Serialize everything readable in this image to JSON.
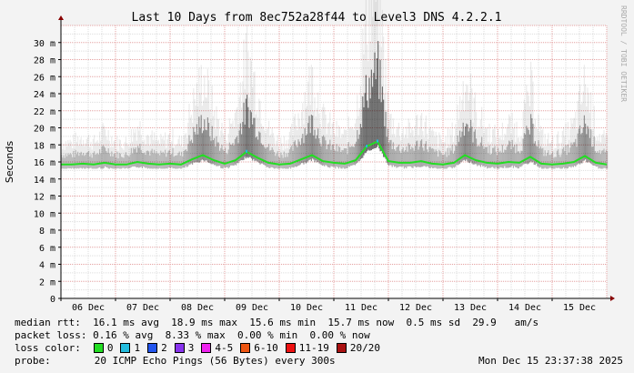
{
  "chart_data": {
    "type": "area",
    "title": "Last 10 Days from 8ec752a28f44 to Level3 DNS 4.2.2.1",
    "ylabel": "Seconds",
    "watermark": "RRDTOOL / TOBI OETIKER",
    "categories": [
      "06 Dec",
      "07 Dec",
      "08 Dec",
      "09 Dec",
      "10 Dec",
      "11 Dec",
      "12 Dec",
      "13 Dec",
      "14 Dec",
      "15 Dec"
    ],
    "y_ticks": [
      "0",
      "2 m",
      "4 m",
      "6 m",
      "8 m",
      "10 m",
      "12 m",
      "14 m",
      "16 m",
      "18 m",
      "20 m",
      "22 m",
      "24 m",
      "26 m",
      "28 m",
      "30 m"
    ],
    "ylim": [
      0,
      32
    ],
    "grid": true,
    "series": [
      {
        "name": "median rtt",
        "color": "#22dd22",
        "x": [
          0.0,
          0.2,
          0.4,
          0.6,
          0.8,
          1.0,
          1.2,
          1.4,
          1.6,
          1.8,
          2.0,
          2.2,
          2.4,
          2.6,
          2.8,
          3.0,
          3.2,
          3.4,
          3.6,
          3.8,
          4.0,
          4.2,
          4.4,
          4.6,
          4.8,
          5.0,
          5.2,
          5.4,
          5.6,
          5.8,
          6.0,
          6.2,
          6.4,
          6.6,
          6.8,
          7.0,
          7.2,
          7.4,
          7.6,
          7.8,
          8.0,
          8.2,
          8.4,
          8.6,
          8.8,
          9.0,
          9.2,
          9.4,
          9.6,
          9.8,
          10.0
        ],
        "values": [
          15.7,
          15.7,
          15.8,
          15.7,
          15.9,
          15.7,
          15.7,
          16.0,
          15.8,
          15.7,
          15.8,
          15.7,
          16.3,
          16.8,
          16.2,
          15.8,
          16.2,
          17.2,
          16.5,
          15.9,
          15.7,
          15.8,
          16.3,
          16.8,
          16.1,
          15.9,
          15.8,
          16.2,
          17.8,
          18.4,
          16.1,
          15.9,
          15.9,
          16.1,
          15.8,
          15.7,
          15.9,
          16.8,
          16.2,
          15.9,
          15.8,
          16.0,
          15.9,
          16.6,
          15.8,
          15.7,
          15.8,
          16.0,
          16.7,
          15.9,
          15.7
        ]
      }
    ]
  },
  "stats": {
    "median_rtt": "median rtt:  16.1 ms avg  18.9 ms max  15.6 ms min  15.7 ms now  0.5 ms sd  29.9   am/s",
    "packet_loss": "packet loss: 0.16 % avg  8.33 % max  0.00 % min  0.00 % now",
    "loss_color_label": "loss color:",
    "loss_colors": [
      {
        "label": "0",
        "color": "#22dd22"
      },
      {
        "label": "1",
        "color": "#22bbdd"
      },
      {
        "label": "2",
        "color": "#2255ee"
      },
      {
        "label": "3",
        "color": "#8833ee"
      },
      {
        "label": "4-5",
        "color": "#ee22ee"
      },
      {
        "label": "6-10",
        "color": "#ee5511"
      },
      {
        "label": "11-19",
        "color": "#ee1111"
      },
      {
        "label": "20/20",
        "color": "#aa1111"
      }
    ],
    "probe_label": "probe:",
    "probe": "20 ICMP Echo Pings (56 Bytes) every 300s",
    "timestamp": "Mon Dec 15 23:37:38 2025"
  },
  "colors": {
    "background": "#f3f3f3",
    "plot_background": "#ffffff",
    "grid_major": "#e4a0a0",
    "grid_minor": "#dddddd",
    "axis": "#000000",
    "arrow": "#880000"
  }
}
